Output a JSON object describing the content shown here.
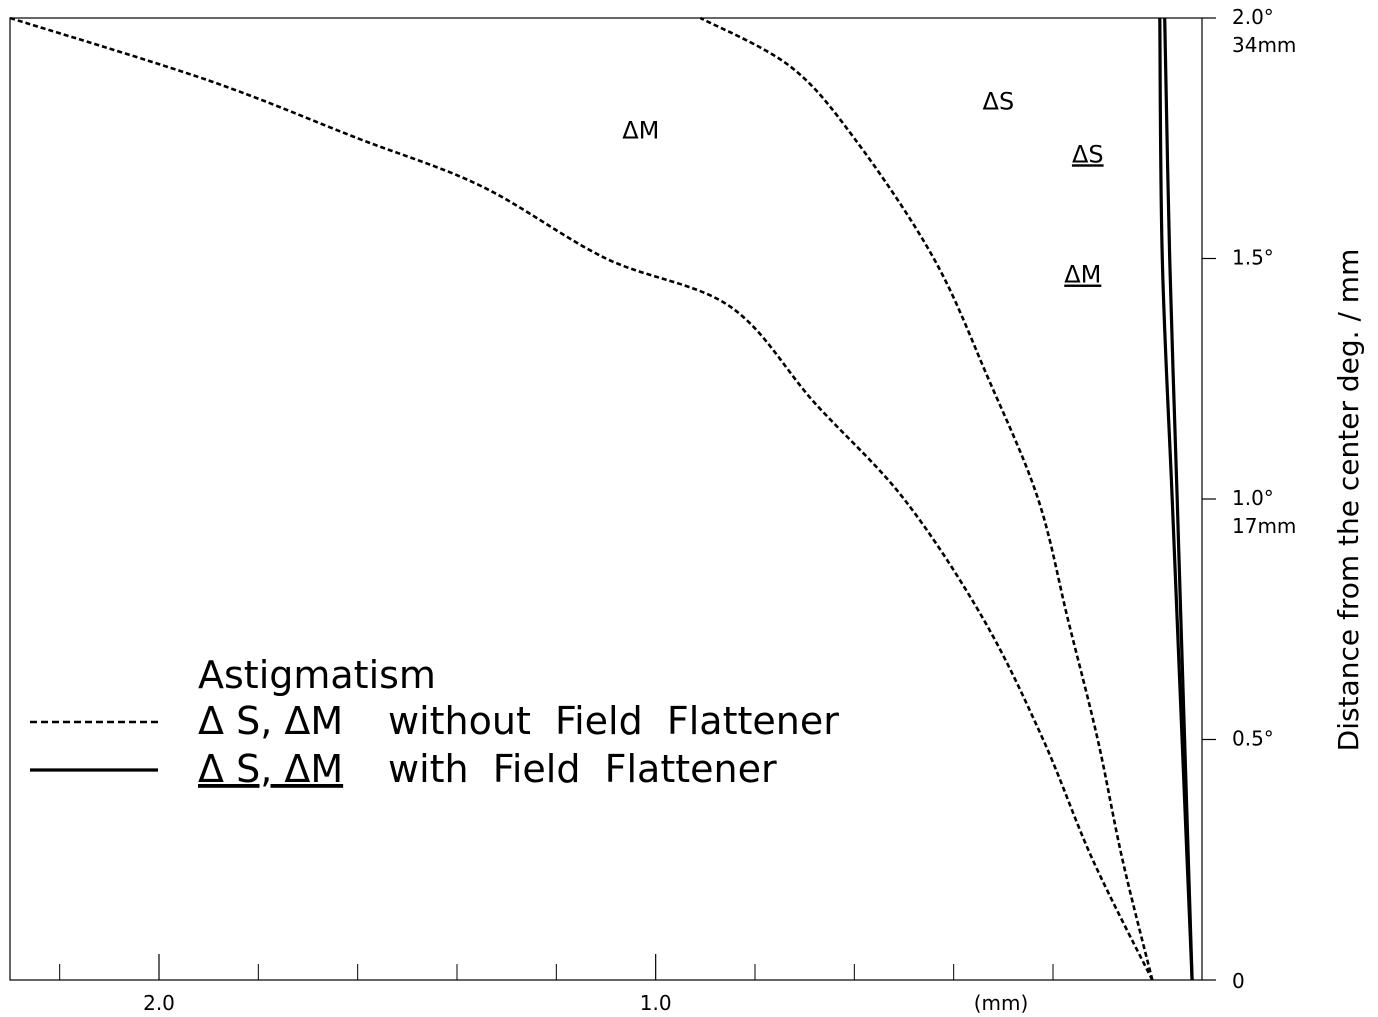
{
  "chart_data": {
    "type": "line",
    "title": "",
    "xlabel": "",
    "x_unit_label": "(mm)",
    "ylabel": "Distance from the center deg. / mm",
    "xlim": [
      2.3,
      -0.1
    ],
    "ylim": [
      0,
      2.0
    ],
    "x_reversed": true,
    "grid": false,
    "x_ticks": [
      {
        "value": 2.0,
        "label": "2.0"
      },
      {
        "value": 1.0,
        "label": "1.0"
      }
    ],
    "x_minor_ticks": [
      2.2,
      1.8,
      1.6,
      1.4,
      1.2,
      0.8,
      0.6,
      0.4,
      0.2
    ],
    "y_ticks": [
      {
        "value": 2.0,
        "label": "2.0°",
        "sublabel": "34mm"
      },
      {
        "value": 1.5,
        "label": "1.5°",
        "sublabel": ""
      },
      {
        "value": 1.0,
        "label": "1.0°",
        "sublabel": "17mm"
      },
      {
        "value": 0.5,
        "label": "0.5°",
        "sublabel": ""
      },
      {
        "value": 0.0,
        "label": "0",
        "sublabel": ""
      }
    ],
    "series": [
      {
        "key": "dM_without",
        "label": "ΔM",
        "underlined": false,
        "style": "dashed",
        "points": [
          [
            0.0,
            0.0
          ],
          [
            0.12,
            0.25
          ],
          [
            0.22,
            0.5
          ],
          [
            0.34,
            0.75
          ],
          [
            0.5,
            1.0
          ],
          [
            0.68,
            1.2
          ],
          [
            0.85,
            1.4
          ],
          [
            1.1,
            1.5
          ],
          [
            1.35,
            1.65
          ],
          [
            1.6,
            1.75
          ],
          [
            1.9,
            1.87
          ],
          [
            2.3,
            2.0
          ]
        ]
      },
      {
        "key": "dS_without",
        "label": "ΔS",
        "underlined": false,
        "style": "dashed",
        "points": [
          [
            0.0,
            0.0
          ],
          [
            0.06,
            0.25
          ],
          [
            0.11,
            0.5
          ],
          [
            0.17,
            0.75
          ],
          [
            0.23,
            1.0
          ],
          [
            0.33,
            1.25
          ],
          [
            0.44,
            1.5
          ],
          [
            0.6,
            1.75
          ],
          [
            0.73,
            1.9
          ],
          [
            0.91,
            2.0
          ]
        ]
      },
      {
        "key": "dS_with",
        "label": "ΔS",
        "underlined": true,
        "style": "solid",
        "points": [
          [
            -0.08,
            0.0
          ],
          [
            -0.06,
            0.5
          ],
          [
            -0.04,
            1.0
          ],
          [
            -0.02,
            1.5
          ],
          [
            -0.015,
            2.0
          ]
        ]
      },
      {
        "key": "dM_with",
        "label": "ΔM",
        "underlined": true,
        "style": "solid",
        "points": [
          [
            -0.08,
            0.0
          ],
          [
            -0.065,
            0.5
          ],
          [
            -0.05,
            1.0
          ],
          [
            -0.035,
            1.5
          ],
          [
            -0.025,
            2.0
          ]
        ]
      }
    ],
    "annotations": [
      {
        "text": "ΔM",
        "x": 1.03,
        "y": 1.75,
        "underlined": false
      },
      {
        "text": "ΔS",
        "x": 0.31,
        "y": 1.81,
        "underlined": false
      },
      {
        "text": "ΔS",
        "x": 0.13,
        "y": 1.7,
        "underlined": true
      },
      {
        "text": "ΔM",
        "x": 0.14,
        "y": 1.45,
        "underlined": true
      }
    ],
    "legend": {
      "title": "Astigmatism",
      "placement": "lower-left",
      "entries": [
        {
          "style": "dashed",
          "prefix": "Δ S, ΔM",
          "text": "without  Field  Flattener",
          "underlined": false
        },
        {
          "style": "solid",
          "prefix": "Δ S, ΔM",
          "text": "with  Field  Flattener",
          "underlined": true
        }
      ]
    }
  }
}
